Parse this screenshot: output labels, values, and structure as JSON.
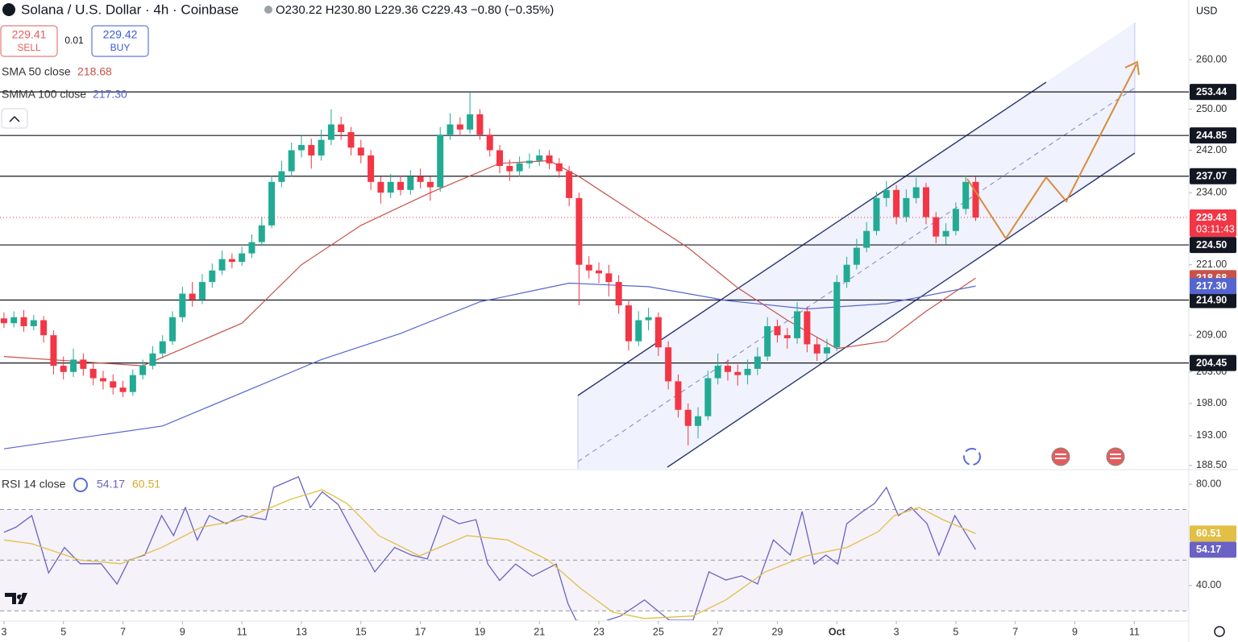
{
  "chart_data": [
    {
      "type": "candlestick",
      "title": "Solana / U.S. Dollar · 4h · Coinbase",
      "ohlc_text": "O230.22 H230.80 L229.36 C229.43 −0.80 (−0.35%)",
      "quote": {
        "sell_price": "229.41",
        "sell_label": "SELL",
        "spread": "0.01",
        "buy_price": "229.42",
        "buy_label": "BUY"
      },
      "currency": "USD",
      "countdown": "03:11:43",
      "up_color": "#22ab94",
      "down_color": "#f23645",
      "log_scale": true,
      "xlim": [
        -0.4,
        119.5
      ],
      "ylim": [
        188,
        272.6
      ],
      "xticks": [
        {
          "value": 0,
          "label": "3"
        },
        {
          "value": 6,
          "label": "5"
        },
        {
          "value": 12,
          "label": "7"
        },
        {
          "value": 18,
          "label": "9"
        },
        {
          "value": 24,
          "label": "11"
        },
        {
          "value": 30,
          "label": "13"
        },
        {
          "value": 36,
          "label": "15"
        },
        {
          "value": 42,
          "label": "17"
        },
        {
          "value": 48,
          "label": "19"
        },
        {
          "value": 54,
          "label": "21"
        },
        {
          "value": 60,
          "label": "23"
        },
        {
          "value": 66,
          "label": "25"
        },
        {
          "value": 72,
          "label": "27"
        },
        {
          "value": 78,
          "label": "29"
        },
        {
          "value": 84,
          "label": "Oct"
        },
        {
          "value": 90,
          "label": "3"
        },
        {
          "value": 96,
          "label": "5"
        },
        {
          "value": 102,
          "label": "7"
        },
        {
          "value": 108,
          "label": "9"
        },
        {
          "value": 114,
          "label": "11"
        }
      ],
      "yticks": [
        {
          "value": 260,
          "label": "260.00"
        },
        {
          "value": 250,
          "label": "250.00"
        },
        {
          "value": 242,
          "label": "242.00"
        },
        {
          "value": 234,
          "label": "234.00"
        },
        {
          "value": 221,
          "label": "221.00"
        },
        {
          "value": 209,
          "label": "209.00"
        },
        {
          "value": 203,
          "label": "203.00"
        },
        {
          "value": 198,
          "label": "198.00"
        },
        {
          "value": 193,
          "label": "193.00"
        },
        {
          "value": 188.5,
          "label": "188.50"
        }
      ],
      "levels": [
        253.44,
        244.85,
        237.07,
        {
          "value": 224.5,
          "label": "224.50"
        },
        {
          "value": 214.9,
          "label": "214.90"
        },
        204.45
      ],
      "x": [
        0,
        1,
        2,
        3,
        4,
        5,
        6,
        7,
        8,
        9,
        10,
        11,
        12,
        13,
        14,
        15,
        16,
        17,
        18,
        19,
        20,
        21,
        22,
        23,
        24,
        25,
        26,
        27,
        28,
        29,
        30,
        31,
        32,
        33,
        34,
        35,
        36,
        37,
        38,
        39,
        40,
        41,
        42,
        43,
        44,
        45,
        46,
        47,
        48,
        49,
        50,
        51,
        52,
        53,
        54,
        55,
        56,
        57,
        58,
        59,
        60,
        61,
        62,
        63,
        64,
        65,
        66,
        67,
        68,
        69,
        70,
        71,
        72,
        73,
        74,
        75,
        76,
        77,
        78,
        79,
        80,
        81,
        82,
        83,
        84,
        85,
        86,
        87,
        88,
        89,
        90,
        91,
        92,
        93,
        94,
        95,
        96,
        97,
        98
      ],
      "open": [
        211.8,
        211,
        212,
        210.5,
        211.5,
        209,
        204,
        203,
        205,
        203.5,
        202,
        201.5,
        200.5,
        199.8,
        202.5,
        204,
        206,
        208,
        212,
        216,
        215,
        218,
        220,
        222,
        221.5,
        223,
        225,
        228,
        236,
        238,
        242,
        243,
        241,
        244,
        247,
        245.5,
        242.5,
        241,
        236,
        234,
        236,
        234.5,
        237,
        236,
        235,
        245,
        247,
        246,
        249,
        245,
        242,
        239,
        238,
        239.5,
        240,
        241,
        239.5,
        238,
        233,
        221,
        220,
        219.5,
        218,
        214,
        208,
        211.5,
        212,
        207,
        201.5,
        197,
        194.5,
        196,
        202,
        204,
        203,
        202.5,
        203.5,
        205.5,
        210.5,
        209,
        208.5,
        213,
        207.5,
        206,
        207,
        218,
        221,
        224,
        227,
        233,
        234.5,
        229.5,
        233,
        235,
        229.5,
        226,
        227,
        231,
        236
      ],
      "high": [
        212.8,
        213,
        213.2,
        212.4,
        212.2,
        209.8,
        205.5,
        206.8,
        206,
        204.6,
        203.2,
        202.6,
        201.6,
        203.4,
        205,
        207.2,
        209,
        213,
        217.2,
        218,
        219.4,
        221.2,
        223.5,
        223,
        224.2,
        226.4,
        229.6,
        237.2,
        240,
        243.5,
        245,
        244.2,
        246,
        250,
        248.5,
        246.5,
        244,
        242,
        237,
        237.5,
        237.2,
        238.2,
        238.5,
        237,
        246.5,
        249.2,
        248.4,
        253.4,
        250,
        246.2,
        243,
        240.2,
        240.8,
        241.4,
        242.2,
        242,
        240.5,
        239,
        234,
        222.5,
        221.4,
        221,
        219.2,
        215,
        213,
        213.6,
        212.8,
        208,
        202.6,
        198,
        197.4,
        203.2,
        206,
        205,
        204.2,
        205,
        207,
        212,
        211.6,
        210.2,
        214.6,
        213.8,
        208.6,
        208.4,
        219.2,
        222.4,
        225.6,
        228.6,
        234.2,
        236.2,
        235.4,
        234.6,
        236.8,
        235.8,
        230.4,
        228.4,
        232.2,
        237.2,
        237
      ],
      "low": [
        210.2,
        210.3,
        209.6,
        209.8,
        207.8,
        202.6,
        201.8,
        202.2,
        202.4,
        200.9,
        200.2,
        199.4,
        199,
        199.2,
        201.8,
        203.4,
        205.2,
        207.4,
        211.2,
        213.8,
        214.2,
        217,
        219.2,
        220.4,
        220.8,
        222.2,
        224.3,
        227.5,
        235,
        237,
        240.6,
        238.5,
        240,
        243,
        244,
        241,
        239.5,
        234.5,
        232,
        233,
        233.5,
        233.6,
        234.8,
        232.5,
        234.2,
        244,
        244.8,
        245.2,
        244,
        240.8,
        237.6,
        236.2,
        237,
        238.5,
        239,
        238.4,
        236.8,
        231.5,
        214,
        218.6,
        217.8,
        215.5,
        212.6,
        206.5,
        207.2,
        209.8,
        205.6,
        200.2,
        195.8,
        191.5,
        192.6,
        195.4,
        201,
        201.6,
        200.8,
        201,
        202.5,
        204.8,
        207.8,
        206.8,
        207.6,
        206.2,
        204.8,
        205,
        206.4,
        217,
        220.2,
        223.2,
        226.2,
        231.4,
        228.2,
        228.6,
        232,
        228.2,
        224.8,
        224.6,
        226.2,
        230,
        228.8
      ],
      "close": [
        211,
        212,
        210.5,
        211.5,
        209,
        204,
        203,
        205,
        203.5,
        202,
        201.5,
        200.5,
        199.8,
        202.5,
        204,
        206,
        208,
        212,
        216,
        215,
        218,
        220,
        222,
        221.5,
        223,
        225,
        228,
        236,
        238,
        242,
        243,
        241,
        244,
        247,
        245.5,
        242.5,
        241,
        236,
        234,
        236,
        234.5,
        237,
        236,
        235,
        245,
        247,
        246,
        249,
        245,
        242,
        239,
        238,
        239.5,
        240,
        241,
        239.5,
        238,
        233,
        221,
        220,
        219.5,
        218,
        214,
        208,
        211.5,
        212,
        207,
        201.5,
        197,
        194.5,
        196,
        202,
        204,
        203,
        202.5,
        203.5,
        205.5,
        210.5,
        209,
        208.5,
        213,
        207.5,
        206,
        207,
        218,
        221,
        224,
        227,
        233,
        234.5,
        229.5,
        233,
        235,
        229.5,
        226,
        227,
        231,
        236,
        229.43
      ],
      "series": [
        {
          "name": "SMA 50 close",
          "color": "#c8524a",
          "legend_value": "218.68",
          "x": [
            0,
            14,
            24,
            30,
            36,
            43,
            50,
            55,
            58,
            63,
            69,
            74,
            79,
            84,
            89,
            93,
            98
          ],
          "values": [
            205.5,
            204,
            211,
            221,
            228,
            234,
            239.5,
            240,
            237,
            231,
            224,
            217,
            211.5,
            206.8,
            208,
            213,
            218.68
          ]
        },
        {
          "name": "SMMA 100 close",
          "color": "#5565d0",
          "legend_value": "217.30",
          "x": [
            0,
            16,
            32,
            40,
            48,
            57,
            65,
            73,
            81,
            89,
            98
          ],
          "values": [
            191,
            194.5,
            205,
            209.3,
            214.6,
            217.8,
            217.2,
            214.8,
            213.4,
            214.3,
            217.3
          ]
        }
      ]
    },
    {
      "type": "line",
      "title": "RSI 14 close",
      "xlim": [
        -0.4,
        119.5
      ],
      "ylim": [
        26.3,
        85.1
      ],
      "yticks": [
        {
          "value": 80,
          "label": "80.00"
        },
        {
          "value": 40,
          "label": "40.00"
        }
      ],
      "band": [
        30,
        70
      ],
      "midline": 50,
      "series": [
        {
          "color": "#6a62c4",
          "legend_value": "54.17",
          "x": [
            0,
            1.2,
            2.8,
            4.5,
            6.1,
            7.7,
            9.8,
            11.4,
            12.6,
            14.2,
            15.9,
            17.1,
            18.3,
            19.5,
            20.7,
            22.4,
            24,
            26.4,
            27.2,
            29.7,
            30.9,
            32.1,
            33.7,
            35.4,
            37.4,
            39.4,
            41.1,
            42.7,
            44.3,
            45.9,
            47.6,
            48.8,
            50,
            51.6,
            53.3,
            55.7,
            56.9,
            57.7,
            59.8,
            62.2,
            64.6,
            67.1,
            69.5,
            71.1,
            72.8,
            74.4,
            76,
            77.6,
            79.3,
            80.5,
            81.7,
            82.9,
            84.1,
            85,
            86.6,
            87.8,
            89,
            90.2,
            91.5,
            93.1,
            94.3,
            95.9,
            98
          ],
          "values": [
            61,
            63,
            67.6,
            45,
            55,
            48.6,
            48.6,
            40.6,
            50,
            52,
            67.6,
            59.7,
            70.8,
            58,
            67.6,
            64.4,
            67.6,
            66,
            78.7,
            82.9,
            70.8,
            77,
            72,
            59.7,
            45.4,
            55,
            52,
            50.5,
            67.6,
            64.4,
            66,
            48.5,
            42,
            48.5,
            43.7,
            48.5,
            32.7,
            26.3,
            25,
            28,
            34.3,
            26.3,
            26.3,
            45.4,
            42.2,
            43.8,
            40.6,
            58,
            52,
            69.2,
            48.5,
            52,
            48.5,
            64.4,
            69.2,
            72.4,
            78.7,
            67.6,
            70.8,
            64.4,
            52,
            67.6,
            54.17
          ]
        },
        {
          "color": "#e2bf45",
          "legend_value": "60.51",
          "x": [
            0,
            2.8,
            7.7,
            11.8,
            15.9,
            19.9,
            24,
            28.9,
            32.1,
            34.6,
            37.8,
            41.9,
            46.7,
            50.8,
            54.9,
            58.1,
            61.4,
            64.6,
            69.5,
            72.8,
            76.8,
            80.9,
            85,
            88.2,
            89.8,
            92.3,
            94.7,
            98
          ],
          "values": [
            58,
            56.5,
            50,
            48.6,
            55,
            63,
            66,
            74,
            77.8,
            72.4,
            59.7,
            51.7,
            59.7,
            58,
            50,
            39,
            29.5,
            27,
            28,
            34.3,
            45.4,
            51.7,
            55,
            61.3,
            67.6,
            70.8,
            66,
            60.51
          ]
        }
      ]
    }
  ]
}
